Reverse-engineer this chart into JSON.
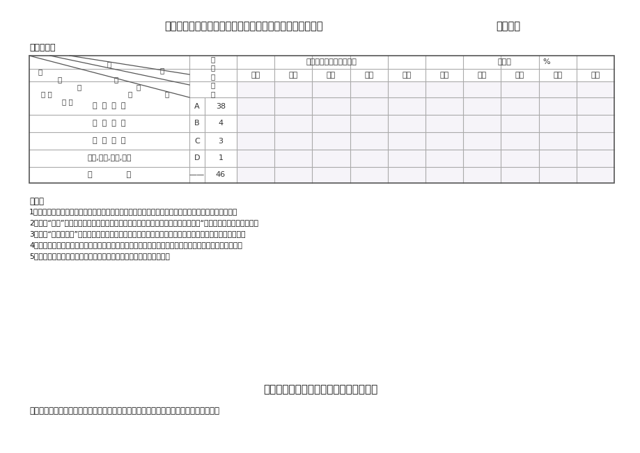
{
  "title_main": "小学【盖章】科学实验活动开出登记统计表【三年级上册】",
  "title_right": "收集整理",
  "label_teacher": "任课教师：",
  "diag_texts": [
    "项",
    "目",
    "开",
    "出",
    "学",
    "情",
    "生",
    "实 验",
    "况",
    "数",
    "要 求"
  ],
  "col_yingkai": "应\n开\n实\n验\n数",
  "header_shiji": "实际开出实验数、分组数",
  "header_kaichu": "开出率",
  "header_percent": "%",
  "sub_headers": [
    "一班",
    "二班",
    "三班",
    "四班",
    "小计",
    "一班",
    "二班",
    "三班",
    "四班",
    "平均"
  ],
  "rows": [
    {
      "name": "分  组  实  验",
      "code": "A",
      "num": "38"
    },
    {
      "name": "演  示  实  验",
      "code": "B",
      "num": "4"
    },
    {
      "name": "参  观  考  察",
      "code": "C",
      "num": "3"
    },
    {
      "name": "种植,饲养,采集,制作",
      "code": "D",
      "num": "1"
    },
    {
      "name": "小              计",
      "code": "——",
      "num": "46"
    }
  ],
  "notes_title": "说明：",
  "notes": [
    "1、此表作为小学科学教师备课以及统计汇总用。超过四个班的年级请按此规律自行设计表格统计汇总。",
    "2、表中“要求”栏是根据科学课程标准、科学教材及教学实际确定。要求按教学进度“开全、开齐、开足、开好二",
    "3、表中“实际开出数”栏应根据实际情况填写。其中种植、饲养根据条件可以学校、班级、科技小组进行。",
    "4、教师可根据教学需要，自行设计演示或分组实验，补充的实践活动应后续填写在登记表的空白表格中。",
    "5、本表一式两份，盖上学校公章后，一份留底，一份于学期末上交。"
  ],
  "bottom_title": "小学科学三年级上册实践活动开出登记表",
  "bottom_subtitle": "（本原始表格每个教师一份，要及时登记填写，于期末统一交教导处存档）学年执教教师",
  "bg_color": "#ffffff",
  "line_color": "#aaaaaa",
  "border_color": "#555555",
  "text_color": "#333333"
}
